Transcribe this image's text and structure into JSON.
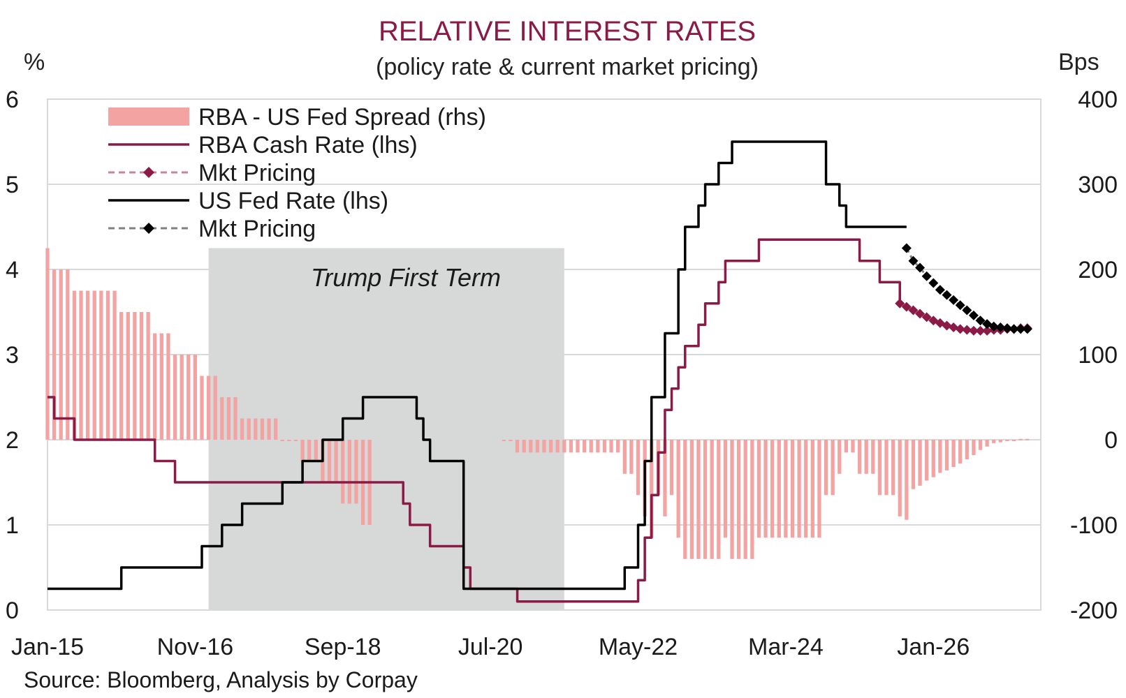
{
  "chart_data": {
    "type": "bar+line",
    "title": "RELATIVE INTEREST RATES",
    "subtitle": "(policy rate & current market pricing)",
    "left_axis_unit": "%",
    "right_axis_unit": "Bps",
    "left_ylim": [
      0,
      6
    ],
    "right_ylim": [
      -200,
      400
    ],
    "left_ticks": [
      "0",
      "1",
      "2",
      "3",
      "4",
      "5",
      "6"
    ],
    "right_ticks": [
      "-200",
      "-100",
      "0",
      "100",
      "200",
      "300",
      "400"
    ],
    "x_range": [
      "2015-01",
      "2027-05"
    ],
    "x_ticks": [
      {
        "label": "Jan-15",
        "date": "2015-01"
      },
      {
        "label": "Nov-16",
        "date": "2016-11"
      },
      {
        "label": "Sep-18",
        "date": "2018-09"
      },
      {
        "label": "Jul-20",
        "date": "2020-07"
      },
      {
        "label": "May-22",
        "date": "2022-05"
      },
      {
        "label": "Mar-24",
        "date": "2024-03"
      },
      {
        "label": "Jan-26",
        "date": "2026-01"
      }
    ],
    "grid": "horizontal",
    "legend_placement": "top-left",
    "legend": [
      {
        "label": "RBA - US Fed Spread (rhs)",
        "kind": "bar",
        "color": "#f4a3a3"
      },
      {
        "label": "RBA Cash Rate (lhs)",
        "kind": "line",
        "color": "#8b1a46"
      },
      {
        "label": "Mkt Pricing",
        "kind": "dashed-diamond",
        "color": "#c9849a",
        "marker_color": "#8b1a46"
      },
      {
        "label": "US Fed Rate (lhs)",
        "kind": "line",
        "color": "#000000"
      },
      {
        "label": "Mkt Pricing",
        "kind": "dashed-diamond",
        "color": "#808080",
        "marker_color": "#000000"
      }
    ],
    "shaded_period": {
      "label": "Trump First Term",
      "start": "2017-01",
      "end": "2021-06",
      "top": 4.25
    },
    "colors": {
      "spread_bar": "#f4a3a3",
      "rba_line": "#8b1a46",
      "fed_line": "#000000",
      "shade": "#c8ccca",
      "grid": "#d9d9d9",
      "title": "#8b1a46"
    },
    "series": [
      {
        "name": "RBA Cash Rate (lhs)",
        "axis": "left",
        "step_points": [
          [
            "2015-01",
            2.5
          ],
          [
            "2015-02",
            2.25
          ],
          [
            "2015-05",
            2.0
          ],
          [
            "2016-05",
            1.75
          ],
          [
            "2016-08",
            1.5
          ],
          [
            "2019-06",
            1.25
          ],
          [
            "2019-07",
            1.0
          ],
          [
            "2019-10",
            0.75
          ],
          [
            "2020-03",
            0.5
          ],
          [
            "2020-04",
            0.25
          ],
          [
            "2020-11",
            0.1
          ],
          [
            "2022-05",
            0.35
          ],
          [
            "2022-06",
            0.85
          ],
          [
            "2022-07",
            1.35
          ],
          [
            "2022-08",
            1.85
          ],
          [
            "2022-09",
            2.35
          ],
          [
            "2022-10",
            2.6
          ],
          [
            "2022-11",
            2.85
          ],
          [
            "2022-12",
            3.1
          ],
          [
            "2023-02",
            3.35
          ],
          [
            "2023-03",
            3.6
          ],
          [
            "2023-05",
            3.85
          ],
          [
            "2023-06",
            4.1
          ],
          [
            "2023-11",
            4.35
          ],
          [
            "2025-02",
            4.1
          ],
          [
            "2025-05",
            3.85
          ],
          [
            "2025-08",
            3.6
          ]
        ]
      },
      {
        "name": "US Fed Rate (lhs)",
        "axis": "left",
        "step_points": [
          [
            "2015-01",
            0.25
          ],
          [
            "2015-12",
            0.5
          ],
          [
            "2016-12",
            0.75
          ],
          [
            "2017-03",
            1.0
          ],
          [
            "2017-06",
            1.25
          ],
          [
            "2017-12",
            1.5
          ],
          [
            "2018-03",
            1.75
          ],
          [
            "2018-06",
            2.0
          ],
          [
            "2018-09",
            2.25
          ],
          [
            "2018-12",
            2.5
          ],
          [
            "2019-08",
            2.25
          ],
          [
            "2019-09",
            2.0
          ],
          [
            "2019-10",
            1.75
          ],
          [
            "2020-03",
            0.25
          ],
          [
            "2022-03",
            0.5
          ],
          [
            "2022-05",
            1.0
          ],
          [
            "2022-06",
            1.75
          ],
          [
            "2022-07",
            2.5
          ],
          [
            "2022-09",
            3.25
          ],
          [
            "2022-11",
            4.0
          ],
          [
            "2022-12",
            4.5
          ],
          [
            "2023-02",
            4.75
          ],
          [
            "2023-03",
            5.0
          ],
          [
            "2023-05",
            5.25
          ],
          [
            "2023-07",
            5.5
          ],
          [
            "2024-09",
            5.0
          ],
          [
            "2024-11",
            4.75
          ],
          [
            "2024-12",
            4.5
          ]
        ],
        "end_date": "2025-09"
      },
      {
        "name": "RBA Mkt Pricing",
        "axis": "left",
        "points": [
          [
            "2025-08",
            3.6
          ],
          [
            "2025-09",
            3.56
          ],
          [
            "2025-10",
            3.52
          ],
          [
            "2025-11",
            3.48
          ],
          [
            "2025-12",
            3.44
          ],
          [
            "2026-01",
            3.4
          ],
          [
            "2026-02",
            3.37
          ],
          [
            "2026-03",
            3.34
          ],
          [
            "2026-04",
            3.32
          ],
          [
            "2026-05",
            3.3
          ],
          [
            "2026-06",
            3.29
          ],
          [
            "2026-07",
            3.28
          ],
          [
            "2026-08",
            3.28
          ],
          [
            "2026-09",
            3.28
          ],
          [
            "2026-10",
            3.29
          ],
          [
            "2026-11",
            3.29
          ],
          [
            "2026-12",
            3.3
          ],
          [
            "2027-01",
            3.3
          ],
          [
            "2027-02",
            3.31
          ],
          [
            "2027-03",
            3.31
          ]
        ]
      },
      {
        "name": "US Fed Mkt Pricing",
        "axis": "left",
        "points": [
          [
            "2025-09",
            4.25
          ],
          [
            "2025-10",
            4.1
          ],
          [
            "2025-11",
            4.02
          ],
          [
            "2025-12",
            3.92
          ],
          [
            "2026-01",
            3.84
          ],
          [
            "2026-02",
            3.76
          ],
          [
            "2026-03",
            3.7
          ],
          [
            "2026-04",
            3.64
          ],
          [
            "2026-05",
            3.58
          ],
          [
            "2026-06",
            3.52
          ],
          [
            "2026-07",
            3.46
          ],
          [
            "2026-08",
            3.4
          ],
          [
            "2026-09",
            3.36
          ],
          [
            "2026-10",
            3.33
          ],
          [
            "2026-11",
            3.32
          ],
          [
            "2026-12",
            3.31
          ],
          [
            "2027-01",
            3.3
          ],
          [
            "2027-02",
            3.3
          ],
          [
            "2027-03",
            3.3
          ]
        ]
      },
      {
        "name": "RBA - US Fed Spread (rhs)",
        "axis": "right",
        "derived_from": [
          "RBA Cash Rate (lhs)",
          "US Fed Rate (lhs)",
          "RBA Mkt Pricing",
          "US Fed Mkt Pricing"
        ],
        "missing_range": [
          "2019-02",
          "2020-08"
        ]
      }
    ]
  },
  "source": "Source: Bloomberg, Analysis by Corpay"
}
